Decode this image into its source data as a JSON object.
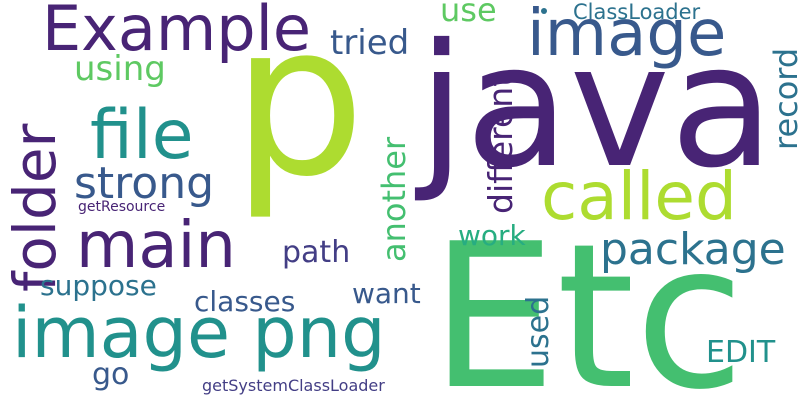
{
  "wordcloud": {
    "colors": {
      "purple": "#482475",
      "indigo": "#433e85",
      "slate": "#38598c",
      "blue": "#2c728e",
      "teal": "#21918c",
      "green": "#27ad81",
      "emerald": "#44bf70",
      "lime": "#5ec962",
      "chartreuse": "#addc30"
    },
    "words": {
      "p": "p",
      "java": "java",
      "etc": "Etc",
      "example": "Example",
      "image": "image",
      "called": "called",
      "file": "file",
      "folder": "folder",
      "main": "main",
      "image_png": "image png",
      "strong": "strong",
      "package": "package",
      "tried": "tried",
      "using": "using",
      "use": "use",
      "classloader": "ClassLoader",
      "different": "different",
      "record": "record",
      "another": "another",
      "work": "work",
      "path": "path",
      "suppose": "suppose",
      "classes": "classes",
      "want": "want",
      "used": "used",
      "edit": "EDIT",
      "go": "go",
      "getresource": "getResource",
      "getsystemclassloader": "getSystemClassLoader"
    }
  }
}
